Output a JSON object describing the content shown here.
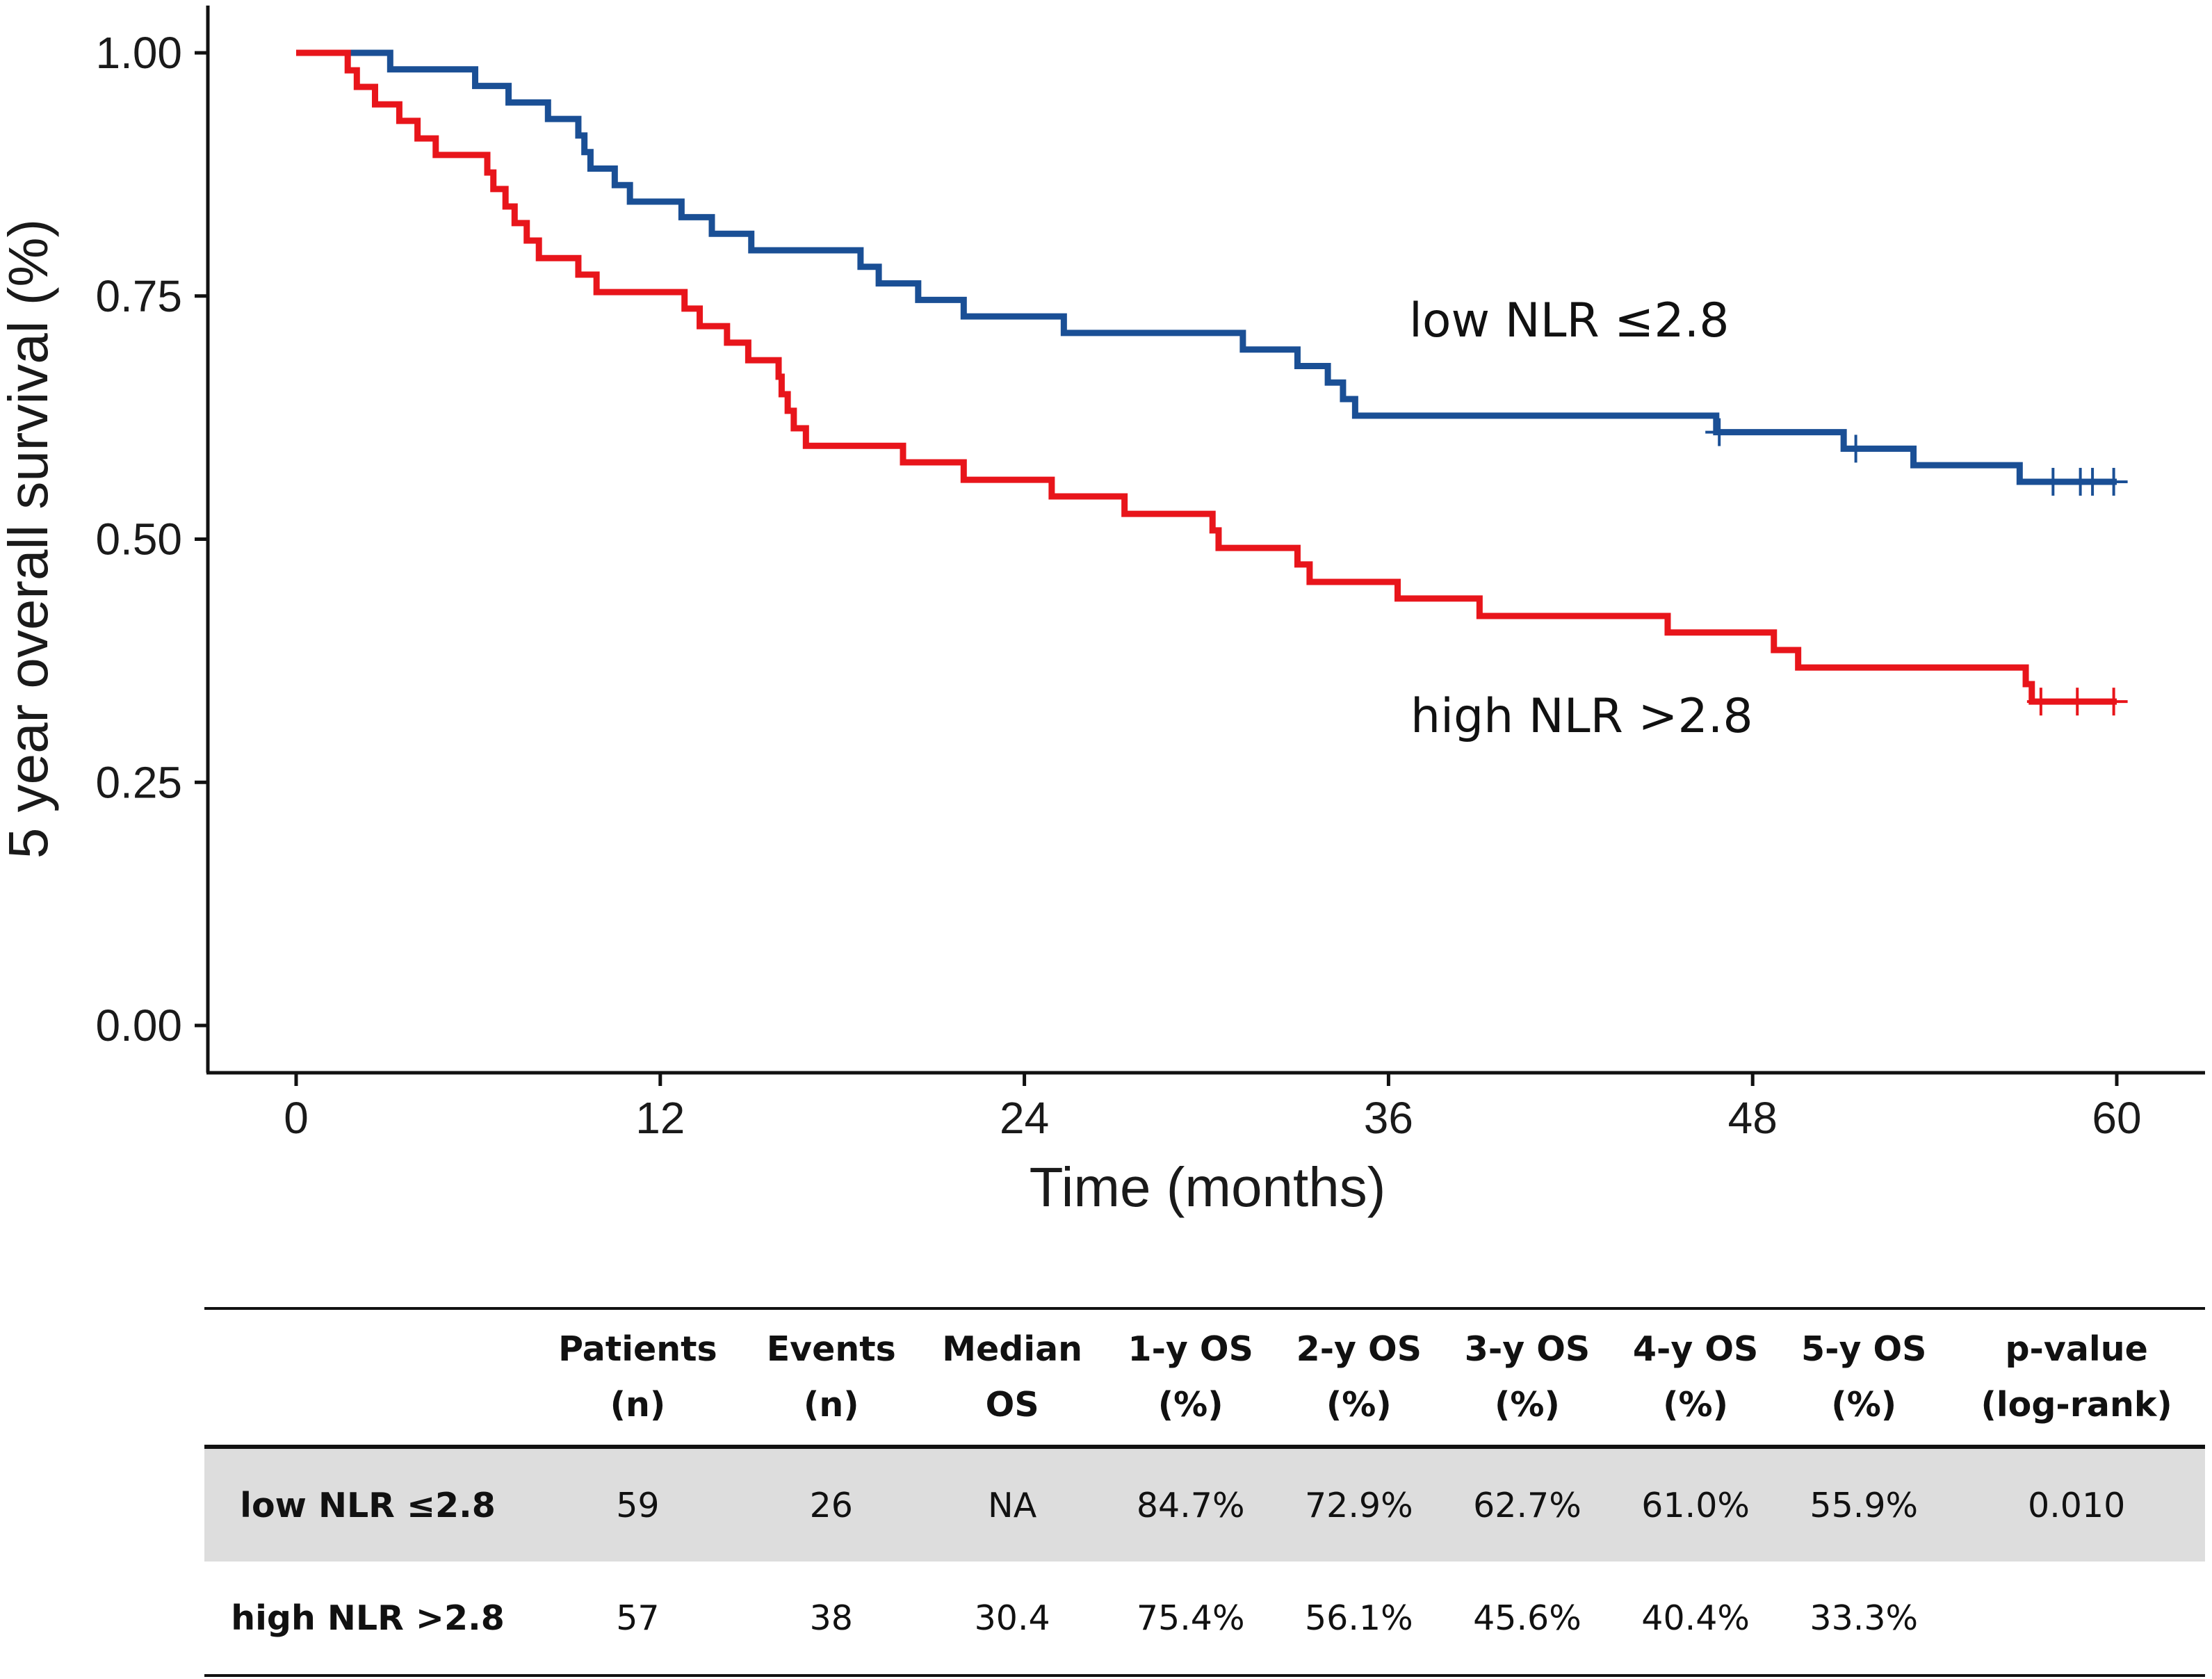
{
  "chart_data": {
    "type": "line",
    "subtype": "kaplan-meier step",
    "xlabel": "Time (months)",
    "ylabel": "5 year overall survival (%)",
    "xlim": [
      0,
      60
    ],
    "ylim": [
      0,
      1
    ],
    "x_ticks": [
      0,
      12,
      24,
      36,
      48,
      60
    ],
    "x_tick_labels": [
      "0",
      "12",
      "24",
      "36",
      "48",
      "60"
    ],
    "y_ticks": [
      0,
      0.25,
      0.5,
      0.75,
      1.0
    ],
    "y_tick_labels": [
      "0.00",
      "0.25",
      "0.50",
      "0.75",
      "1.00"
    ],
    "series": [
      {
        "name": "low NLR ≤2.8",
        "label": "low NLR ≤2.8",
        "color": "#1a4f95",
        "steps": [
          [
            0,
            1.0
          ],
          [
            3.1,
            0.983
          ],
          [
            5.9,
            0.966
          ],
          [
            7.0,
            0.949
          ],
          [
            8.3,
            0.932
          ],
          [
            9.3,
            0.915
          ],
          [
            9.5,
            0.898
          ],
          [
            9.7,
            0.881
          ],
          [
            10.5,
            0.864
          ],
          [
            11.0,
            0.847
          ],
          [
            12.7,
            0.831
          ],
          [
            13.7,
            0.814
          ],
          [
            15.0,
            0.797
          ],
          [
            18.6,
            0.78
          ],
          [
            19.2,
            0.763
          ],
          [
            20.5,
            0.746
          ],
          [
            22.0,
            0.729
          ],
          [
            25.3,
            0.712
          ],
          [
            31.2,
            0.695
          ],
          [
            33.0,
            0.678
          ],
          [
            34.0,
            0.661
          ],
          [
            34.5,
            0.644
          ],
          [
            34.9,
            0.627
          ],
          [
            46.8,
            0.61
          ],
          [
            51.0,
            0.593
          ],
          [
            53.3,
            0.576
          ],
          [
            56.8,
            0.559
          ]
        ],
        "end_x": 60,
        "censor_x": [
          46.9,
          51.4,
          57.9,
          58.8,
          59.2,
          59.9
        ]
      },
      {
        "name": "high NLR >2.8",
        "label": "high NLR >2.8",
        "color": "#e8151b",
        "steps": [
          [
            0,
            1.0
          ],
          [
            1.7,
            0.982
          ],
          [
            2.0,
            0.965
          ],
          [
            2.6,
            0.947
          ],
          [
            3.4,
            0.93
          ],
          [
            4.0,
            0.912
          ],
          [
            4.6,
            0.895
          ],
          [
            6.3,
            0.877
          ],
          [
            6.5,
            0.86
          ],
          [
            6.9,
            0.842
          ],
          [
            7.2,
            0.825
          ],
          [
            7.6,
            0.807
          ],
          [
            8.0,
            0.789
          ],
          [
            9.3,
            0.772
          ],
          [
            9.9,
            0.754
          ],
          [
            12.8,
            0.737
          ],
          [
            13.3,
            0.719
          ],
          [
            14.2,
            0.702
          ],
          [
            14.9,
            0.684
          ],
          [
            15.9,
            0.667
          ],
          [
            16.0,
            0.649
          ],
          [
            16.2,
            0.632
          ],
          [
            16.4,
            0.614
          ],
          [
            16.8,
            0.596
          ],
          [
            20.0,
            0.579
          ],
          [
            22.0,
            0.561
          ],
          [
            24.9,
            0.544
          ],
          [
            27.3,
            0.526
          ],
          [
            30.2,
            0.509
          ],
          [
            30.4,
            0.491
          ],
          [
            33.0,
            0.474
          ],
          [
            33.4,
            0.456
          ],
          [
            36.3,
            0.439
          ],
          [
            39.0,
            0.421
          ],
          [
            45.2,
            0.404
          ],
          [
            48.7,
            0.386
          ],
          [
            49.5,
            0.368
          ],
          [
            57.0,
            0.351
          ],
          [
            57.2,
            0.333
          ]
        ],
        "end_x": 60,
        "censor_x": [
          57.5,
          58.7,
          59.9
        ]
      }
    ]
  },
  "table": {
    "headers": [
      {
        "line1": "",
        "line2": ""
      },
      {
        "line1": "Patients",
        "line2": "(n)"
      },
      {
        "line1": "Events",
        "line2": "(n)"
      },
      {
        "line1": "Median",
        "line2": "OS"
      },
      {
        "line1": "1-y OS",
        "line2": "(%)"
      },
      {
        "line1": "2-y OS",
        "line2": "(%)"
      },
      {
        "line1": "3-y OS",
        "line2": "(%)"
      },
      {
        "line1": "4-y OS",
        "line2": "(%)"
      },
      {
        "line1": "5-y OS",
        "line2": "(%)"
      },
      {
        "line1": "p-value",
        "line2": "(log-rank)"
      }
    ],
    "rows": [
      {
        "group": "low NLR ≤2.8",
        "patients": "59",
        "events": "26",
        "median_os": "NA",
        "os_1y": "84.7%",
        "os_2y": "72.9%",
        "os_3y": "62.7%",
        "os_4y": "61.0%",
        "os_5y": "55.9%",
        "p_value": "0.010"
      },
      {
        "group": "high NLR >2.8",
        "patients": "57",
        "events": "38",
        "median_os": "30.4",
        "os_1y": "75.4%",
        "os_2y": "56.1%",
        "os_3y": "45.6%",
        "os_4y": "40.4%",
        "os_5y": "33.3%",
        "p_value": ""
      }
    ]
  }
}
